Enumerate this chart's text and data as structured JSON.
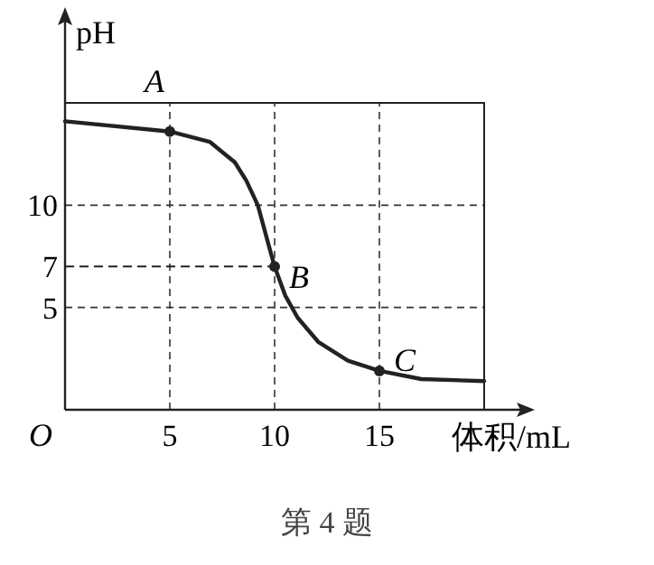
{
  "chart_data": {
    "type": "line",
    "title": "第 4 题",
    "xlabel": "体积/mL",
    "ylabel": "pH",
    "series": [
      {
        "color": "#222222",
        "x": [
          0,
          5,
          6.9,
          8.1,
          8.65,
          9.2,
          9.65,
          10,
          10.5,
          11.1,
          12.1,
          13.5,
          15,
          17,
          20
        ],
        "values": [
          14.1,
          13.6,
          13.1,
          12.1,
          11.2,
          10,
          8.3,
          7,
          5.6,
          4.5,
          3.3,
          2.4,
          1.9,
          1.5,
          1.4
        ]
      }
    ],
    "xlim": [
      0,
      20
    ],
    "ylim": [
      0,
      15
    ],
    "xticks": [
      5,
      10,
      15
    ],
    "yticks": [
      5,
      7,
      10
    ],
    "grid": true,
    "marker": "none",
    "line_style": "solid",
    "ref_lines": [
      {
        "axis": "y",
        "value": 7,
        "label": null
      }
    ],
    "annotations": [
      "O",
      {
        "text": "A",
        "x": 5,
        "y": 13.6
      },
      {
        "text": "B",
        "x": 10,
        "y": 7
      },
      {
        "text": "C",
        "x": 15,
        "y": 1.9
      }
    ]
  }
}
